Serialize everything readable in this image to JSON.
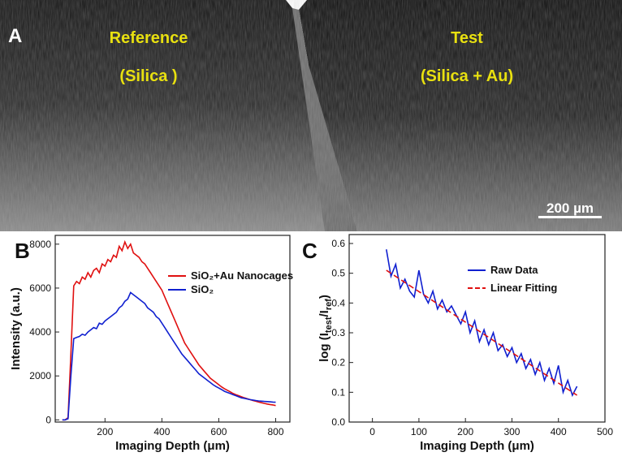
{
  "image_panel": {
    "label": "A",
    "left_title": "Reference",
    "left_subtitle": "(Silica )",
    "right_title": "Test",
    "right_subtitle": "(Silica + Au)",
    "scale_bar_label": "200 µm"
  },
  "chart_data": [
    {
      "type": "line",
      "panel_label": "B",
      "x_label": "Imaging Depth (μm)",
      "y_label": "Intensity (a.u.)",
      "xlim": [
        25,
        850
      ],
      "ylim": [
        -100,
        8400
      ],
      "xticks": [
        200,
        400,
        600,
        800
      ],
      "yticks": [
        0,
        2000,
        4000,
        6000,
        8000
      ],
      "legend": "upper right",
      "x": [
        50,
        60,
        70,
        80,
        90,
        100,
        110,
        120,
        130,
        140,
        150,
        160,
        170,
        180,
        190,
        200,
        210,
        220,
        230,
        240,
        250,
        260,
        270,
        280,
        290,
        300,
        310,
        320,
        330,
        340,
        350,
        360,
        370,
        380,
        390,
        400,
        410,
        420,
        430,
        440,
        450,
        460,
        470,
        480,
        490,
        500,
        510,
        520,
        530,
        540,
        550,
        560,
        570,
        580,
        590,
        600,
        610,
        620,
        630,
        640,
        650,
        660,
        670,
        680,
        690,
        700,
        710,
        720,
        730,
        740,
        750,
        760,
        770,
        780,
        790,
        800
      ],
      "series": [
        {
          "name": "SiO₂+Au Nanocages",
          "color": "#e01010",
          "values": [
            0,
            0,
            100,
            3000,
            6100,
            6300,
            6200,
            6500,
            6400,
            6700,
            6500,
            6800,
            6900,
            6700,
            7100,
            7000,
            7300,
            7200,
            7500,
            7400,
            7900,
            7700,
            8100,
            7800,
            8000,
            7600,
            7500,
            7400,
            7200,
            7100,
            6900,
            6700,
            6500,
            6300,
            6100,
            5900,
            5600,
            5300,
            5000,
            4700,
            4400,
            4100,
            3800,
            3500,
            3300,
            3100,
            2900,
            2700,
            2500,
            2350,
            2200,
            2050,
            1900,
            1800,
            1700,
            1600,
            1500,
            1420,
            1350,
            1280,
            1200,
            1150,
            1100,
            1050,
            1000,
            960,
            920,
            880,
            850,
            810,
            780,
            750,
            720,
            700,
            680,
            650
          ]
        },
        {
          "name": "SiO₂",
          "color": "#1020d0",
          "values": [
            0,
            0,
            50,
            2000,
            3700,
            3750,
            3800,
            3900,
            3850,
            4000,
            4100,
            4200,
            4150,
            4400,
            4350,
            4500,
            4600,
            4700,
            4800,
            4900,
            5100,
            5200,
            5400,
            5500,
            5800,
            5700,
            5600,
            5500,
            5400,
            5300,
            5100,
            5000,
            4900,
            4700,
            4600,
            4400,
            4200,
            4000,
            3800,
            3600,
            3400,
            3200,
            3000,
            2850,
            2700,
            2550,
            2400,
            2250,
            2100,
            2000,
            1900,
            1800,
            1700,
            1600,
            1520,
            1450,
            1380,
            1300,
            1250,
            1200,
            1150,
            1100,
            1050,
            1000,
            980,
            950,
            920,
            900,
            880,
            860,
            850,
            840,
            830,
            820,
            810,
            800
          ]
        }
      ]
    },
    {
      "type": "line",
      "panel_label": "C",
      "x_label": "Imaging Depth (μm)",
      "y_label": [
        "log (I",
        "test",
        "/I",
        "ref",
        ")"
      ],
      "xlim": [
        -50,
        500
      ],
      "ylim": [
        0,
        0.63
      ],
      "xticks": [
        0,
        100,
        200,
        300,
        400,
        500
      ],
      "yticks": [
        {
          "value": 0,
          "label": "0.0"
        },
        0.1,
        0.2,
        0.3,
        0.4,
        0.5,
        0.6
      ],
      "legend": "upper right",
      "series": [
        {
          "name": "Raw Data",
          "color": "#1020d0",
          "style": "solid",
          "x": [
            30,
            40,
            50,
            60,
            70,
            80,
            90,
            100,
            110,
            120,
            130,
            140,
            150,
            160,
            170,
            180,
            190,
            200,
            210,
            220,
            230,
            240,
            250,
            260,
            270,
            280,
            290,
            300,
            310,
            320,
            330,
            340,
            350,
            360,
            370,
            380,
            390,
            400,
            410,
            420,
            430,
            440
          ],
          "values": [
            0.58,
            0.49,
            0.53,
            0.45,
            0.48,
            0.44,
            0.42,
            0.51,
            0.43,
            0.4,
            0.44,
            0.38,
            0.41,
            0.37,
            0.39,
            0.36,
            0.33,
            0.37,
            0.3,
            0.34,
            0.27,
            0.31,
            0.26,
            0.3,
            0.24,
            0.26,
            0.22,
            0.25,
            0.2,
            0.23,
            0.18,
            0.21,
            0.16,
            0.2,
            0.14,
            0.18,
            0.13,
            0.19,
            0.1,
            0.14,
            0.09,
            0.12
          ]
        },
        {
          "name": "Linear Fitting",
          "color": "#e01010",
          "style": "dashed",
          "x": [
            30,
            440
          ],
          "values": [
            0.51,
            0.09
          ]
        }
      ]
    }
  ]
}
